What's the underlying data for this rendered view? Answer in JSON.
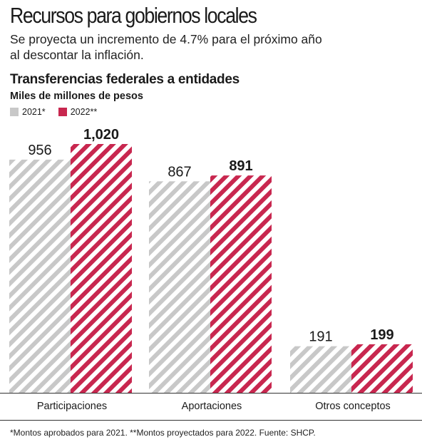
{
  "header": {
    "title": "Recursos para gobiernos locales",
    "subtitle": "Se proyecta un incremento de 4.7% para el próximo año al descontar la inflación."
  },
  "colors": {
    "y2021": "#c8c8c8",
    "y2022": "#c8274f"
  },
  "footnote": "*Montos aprobados para 2021. **Montos proyectados para 2022. Fuente: SHCP.",
  "chart_data": {
    "type": "bar",
    "title": "Transferencias federales a entidades",
    "ylabel": "Miles de millones de pesos",
    "categories": [
      "Participaciones",
      "Aportaciones",
      "Otros conceptos"
    ],
    "series": [
      {
        "name": "2021*",
        "values": [
          956,
          867,
          191
        ],
        "labels": [
          "956",
          "867",
          "191"
        ]
      },
      {
        "name": "2022**",
        "values": [
          1020,
          891,
          199
        ],
        "labels": [
          "1,020",
          "891",
          "199"
        ]
      }
    ],
    "legend": "top-left",
    "grid": false
  }
}
